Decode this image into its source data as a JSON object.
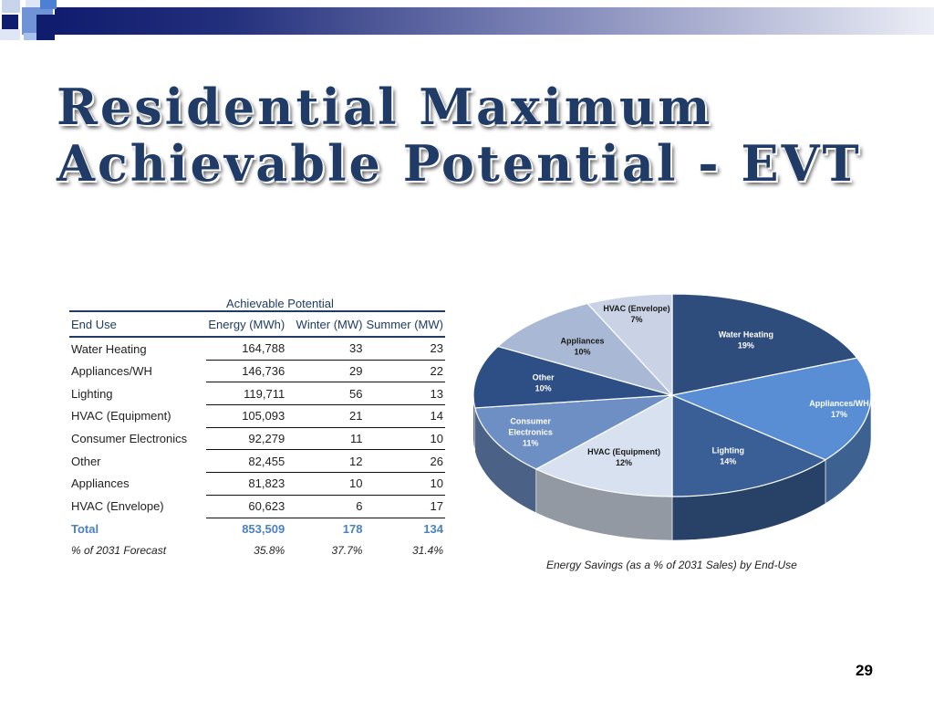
{
  "slide": {
    "title_line1": "Residential Maximum",
    "title_line2": "Achievable Potential - EVT",
    "page_number": "29"
  },
  "table": {
    "group_header": "Achievable Potential",
    "columns": [
      "End Use",
      "Energy (MWh)",
      "Winter (MW)",
      "Summer (MW)"
    ],
    "rows": [
      {
        "end_use": "Water Heating",
        "energy": "164,788",
        "winter": "33",
        "summer": "23"
      },
      {
        "end_use": "Appliances/WH",
        "energy": "146,736",
        "winter": "29",
        "summer": "22"
      },
      {
        "end_use": "Lighting",
        "energy": "119,711",
        "winter": "56",
        "summer": "13"
      },
      {
        "end_use": "HVAC (Equipment)",
        "energy": "105,093",
        "winter": "21",
        "summer": "14"
      },
      {
        "end_use": "Consumer Electronics",
        "energy": "92,279",
        "winter": "11",
        "summer": "10"
      },
      {
        "end_use": "Other",
        "energy": "82,455",
        "winter": "12",
        "summer": "26"
      },
      {
        "end_use": "Appliances",
        "energy": "81,823",
        "winter": "10",
        "summer": "10"
      },
      {
        "end_use": "HVAC (Envelope)",
        "energy": "60,623",
        "winter": "6",
        "summer": "17"
      }
    ],
    "total": {
      "end_use": "Total",
      "energy": "853,509",
      "winter": "178",
      "summer": "134"
    },
    "pct": {
      "end_use": "% of 2031 Forecast",
      "energy": "35.8%",
      "winter": "37.7%",
      "summer": "31.4%"
    }
  },
  "chart_data": {
    "type": "pie",
    "title": "Energy Savings (as a % of 2031 Sales) by End-Use",
    "categories": [
      "Water Heating",
      "Appliances/WH",
      "Lighting",
      "HVAC (Equipment)",
      "Consumer Electronics",
      "Other",
      "Appliances",
      "HVAC (Envelope)"
    ],
    "values": [
      19,
      17,
      14,
      12,
      11,
      10,
      10,
      7
    ],
    "labels": [
      "19%",
      "17%",
      "14%",
      "12%",
      "11%",
      "10%",
      "10%",
      "7%"
    ],
    "colors": [
      "#2e4d7c",
      "#5a8ed4",
      "#3a5f97",
      "#d8e1ef",
      "#6e8fc4",
      "#2d4f85",
      "#a9b9d5",
      "#c9d3e5"
    ]
  }
}
